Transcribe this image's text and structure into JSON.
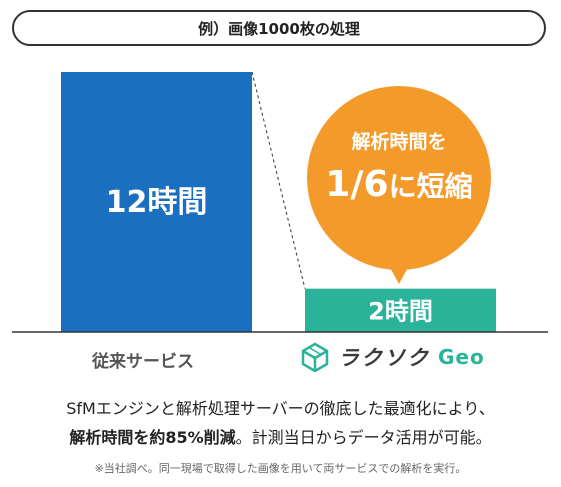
{
  "chart_data": {
    "type": "bar",
    "title": "例）画像1000枚の処理",
    "categories": [
      "従来サービス",
      "ラクソク Geo"
    ],
    "values": [
      12,
      2
    ],
    "unit": "時間",
    "data_labels": [
      "12時間",
      "2時間"
    ],
    "ylim": [
      0,
      12
    ],
    "grid": false,
    "legend": "none",
    "annotation": {
      "line1": "解析時間を",
      "line2_number": "1/6",
      "line2_rest": "に短縮"
    }
  },
  "brand": {
    "name_jp": "ラクソク",
    "name_en": "Geo",
    "logo_icon": "cube-logo-icon"
  },
  "description": {
    "line1": "SfMエンジンと解析処理サーバーの徹底した最適化により、",
    "line2_bold": "解析時間を約85%削減",
    "line2_rest": "。計測当日からデータ活用が可能。"
  },
  "note": "※当社調べ。同一現場で取得した画像を用いて両サービスでの解析を実行。",
  "colors": {
    "bar_conventional": "#1a6fbe",
    "bar_rakusoku": "#2bb39a",
    "bubble": "#f39a2a",
    "baseline": "#333333"
  }
}
